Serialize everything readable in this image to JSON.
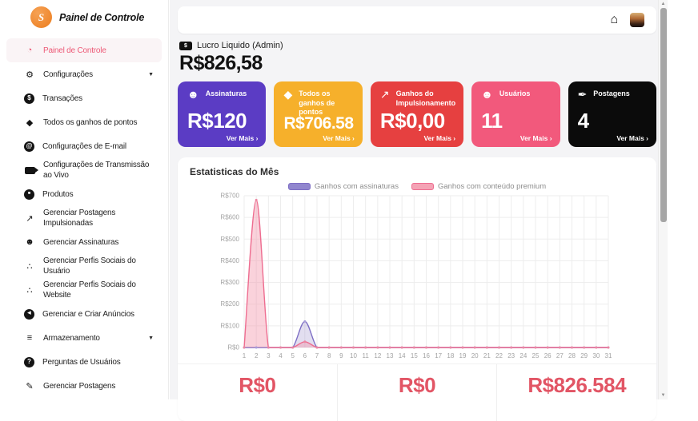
{
  "sidebar": {
    "logo_letter": "S",
    "logo_title": "Painel de Controle",
    "items": [
      {
        "id": "painel-de-controle",
        "label": "Painel de Controle",
        "icon": "gauge-icon",
        "active": true
      },
      {
        "id": "configuracoes",
        "label": "Configurações",
        "icon": "gear-icon",
        "caret": true
      },
      {
        "id": "transacoes",
        "label": "Transações",
        "icon": "money-bag-icon"
      },
      {
        "id": "todos-os-ganhos-de-pontos",
        "label": "Todos os ganhos de pontos",
        "icon": "gem-icon"
      },
      {
        "id": "configuracoes-de-email",
        "label": "Configurações de E-mail",
        "icon": "email-icon"
      },
      {
        "id": "configuracoes-de-transmissao-ao-vivo",
        "label": "Configurações de Transmissão ao Vivo",
        "icon": "video-camera-icon"
      },
      {
        "id": "produtos",
        "label": "Produtos",
        "icon": "product-box-icon"
      },
      {
        "id": "gerenciar-postagens-impulsionadas",
        "label": "Gerenciar Postagens Impulsionadas",
        "icon": "rocket-icon"
      },
      {
        "id": "gerenciar-assinaturas",
        "label": "Gerenciar Assinaturas",
        "icon": "subscriber-icon"
      },
      {
        "id": "gerenciar-perfis-sociais-do-usuario",
        "label": "Gerenciar Perfis Sociais do Usuário",
        "icon": "share-icon"
      },
      {
        "id": "gerenciar-perfis-sociais-do-website",
        "label": "Gerenciar Perfis Sociais do Website",
        "icon": "share-icon"
      },
      {
        "id": "gerenciar-e-criar-anuncios",
        "label": "Gerenciar e Criar Anúncios",
        "icon": "megaphone-icon"
      },
      {
        "id": "armazenamento",
        "label": "Armazenamento",
        "icon": "storage-icon",
        "caret": true
      },
      {
        "id": "perguntas-de-usuarios",
        "label": "Perguntas de Usuários",
        "icon": "question-icon"
      },
      {
        "id": "gerenciar-postagens",
        "label": "Gerenciar Postagens",
        "icon": "posts-icon"
      }
    ]
  },
  "header": {
    "home_icon": "home-icon",
    "avatar": "user-avatar"
  },
  "summary": {
    "label": "Lucro Liquido (Admin)",
    "value": "R$826,58"
  },
  "stat_cards": [
    {
      "id": "assinaturas",
      "label": "Assinaturas",
      "value": "R$120",
      "link": "Ver Mais ›",
      "color": "#5b3cc4",
      "icon": "subscriber-stars-icon"
    },
    {
      "id": "ganhos-de-pontos",
      "label": "Todos os ganhos de pontos",
      "value": "R$706.58",
      "link": "Ver Mais ›",
      "color": "#f6b02b",
      "icon": "gem-icon"
    },
    {
      "id": "ganhos-impulsionamento",
      "label": "Ganhos do Impulsionamento",
      "value": "R$0,00",
      "link": "Ver Mais ›",
      "color": "#e64040",
      "icon": "rocket-icon"
    },
    {
      "id": "usuarios",
      "label": "Usuários",
      "value": "11",
      "link": "Ver Mais ›",
      "color": "#f2597c",
      "icon": "users-group-icon"
    },
    {
      "id": "postagens",
      "label": "Postagens",
      "value": "4",
      "link": "Ver Mais ›",
      "color": "#0b0b0b",
      "icon": "feather-icon"
    }
  ],
  "chart_data": {
    "type": "area",
    "title": "Estatisticas do Mês",
    "x": [
      1,
      2,
      3,
      4,
      5,
      6,
      7,
      8,
      9,
      10,
      11,
      12,
      13,
      14,
      15,
      16,
      17,
      18,
      19,
      20,
      21,
      22,
      23,
      24,
      25,
      26,
      27,
      28,
      29,
      30,
      31
    ],
    "series": [
      {
        "name": "Ganhos com assinaturas",
        "color": "#7d6ec4",
        "fill": "rgba(150,138,202,0.28)",
        "dot": "#a79dd8",
        "legend_fill": "#9186ce",
        "values": [
          0,
          0,
          0,
          0,
          0,
          120,
          0,
          0,
          0,
          0,
          0,
          0,
          0,
          0,
          0,
          0,
          0,
          0,
          0,
          0,
          0,
          0,
          0,
          0,
          0,
          0,
          0,
          0,
          0,
          0,
          0
        ]
      },
      {
        "name": "Ganhos com conteúdo premium",
        "color": "#ee6d90",
        "fill": "rgba(243,148,170,0.42)",
        "dot": "#ec87a2",
        "legend_fill": "#f4a3b5",
        "values": [
          0,
          680,
          0,
          0,
          0,
          26.58,
          0,
          0,
          0,
          0,
          0,
          0,
          0,
          0,
          0,
          0,
          0,
          0,
          0,
          0,
          0,
          0,
          0,
          0,
          0,
          0,
          0,
          0,
          0,
          0,
          0
        ]
      }
    ],
    "ylim": [
      0,
      700
    ],
    "ytick_step": 100,
    "ytick_prefix": "R$",
    "grid": true,
    "legend_position": "top"
  },
  "totals": {
    "values": [
      "R$0",
      "R$0",
      "R$826.584"
    ]
  }
}
